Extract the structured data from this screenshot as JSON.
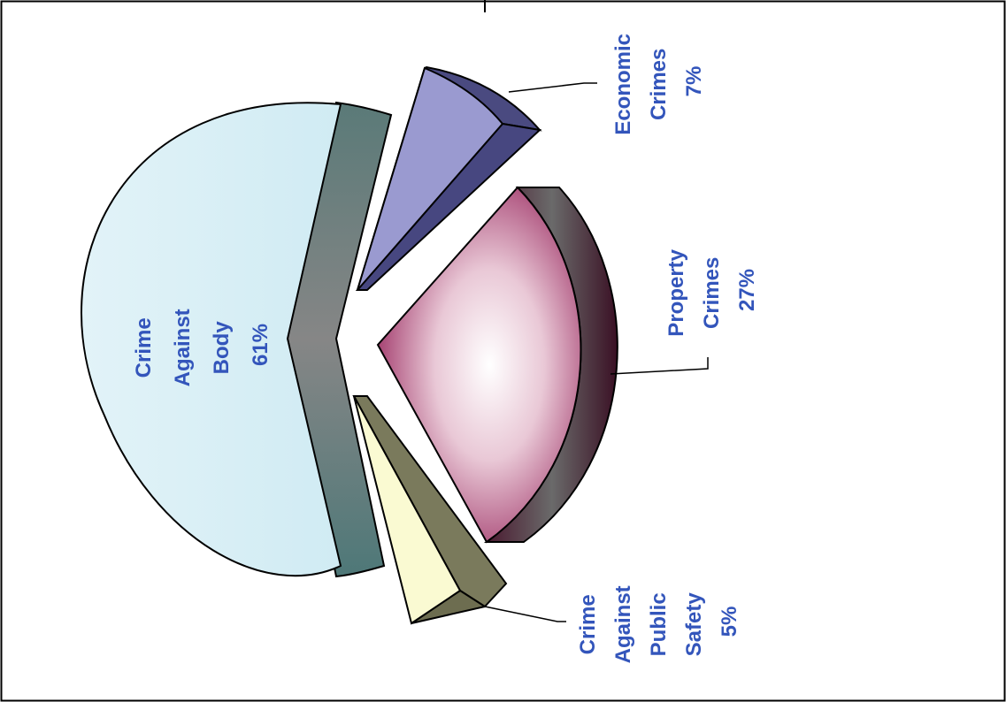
{
  "chart_data": {
    "type": "pie",
    "style": "3d-exploded",
    "orientation": "rotated-90-ccw",
    "slices": [
      {
        "key": "body",
        "lines": [
          "Crime",
          "Against",
          "Body",
          "61%"
        ],
        "value": 61,
        "color": "#d6eef6"
      },
      {
        "key": "property",
        "lines": [
          "Property",
          "Crimes",
          "27%"
        ],
        "value": 27,
        "color": "#a23a6c"
      },
      {
        "key": "economic",
        "lines": [
          "Economic",
          "Crimes",
          "7%"
        ],
        "value": 7,
        "color": "#9a9ad0"
      },
      {
        "key": "safety",
        "lines": [
          "Crime",
          "Against",
          "Public",
          "Safety",
          "5%"
        ],
        "value": 5,
        "color": "#fafad2"
      }
    ]
  }
}
